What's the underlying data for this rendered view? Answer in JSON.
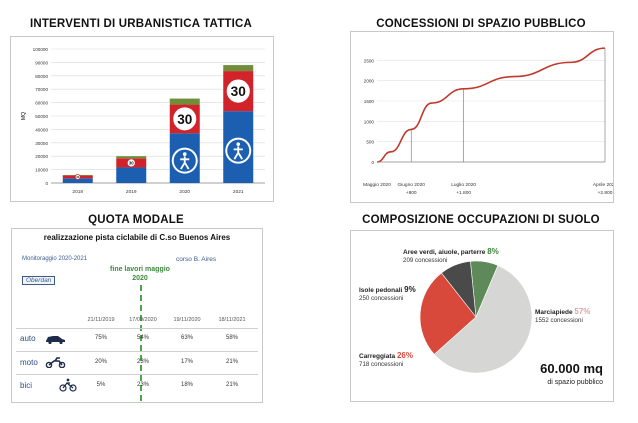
{
  "panels": {
    "tattica": {
      "title": "INTERVENTI DI URBANISTICA TATTICA",
      "chart_data": {
        "type": "bar",
        "categories": [
          "2018",
          "2019",
          "2020",
          "2021"
        ],
        "values": [
          6000,
          20000,
          63000,
          88000
        ],
        "xlabel": "ANNI",
        "ylabel": "MQ",
        "ylim": [
          0,
          100000
        ],
        "yticks": [
          "0",
          "10000",
          "20000",
          "30000",
          "40000",
          "50000",
          "60000",
          "70000",
          "80000",
          "90000",
          "100000"
        ],
        "sign_labels": [
          "30",
          "30",
          "30",
          "30"
        ],
        "colors": {
          "blue": "#1c5fb0",
          "red": "#d2232a",
          "olive": "#6f8d3a",
          "grid": "#d9d9d9"
        }
      }
    },
    "concessioni": {
      "title": "CONCESSIONI DI SPAZIO PUBBLICO",
      "chart_data": {
        "type": "line",
        "x": [
          "Maggio 2020",
          "Giugno 2020",
          "Luglio 2020",
          "Aprile 2021"
        ],
        "x_sub": [
          "",
          "+800",
          "+1.800",
          "+2.800"
        ],
        "y": [
          0,
          800,
          1800,
          2800
        ],
        "ylim": [
          0,
          3000
        ],
        "yticks": [
          "0",
          "500",
          "1000",
          "1500",
          "2000",
          "2500"
        ],
        "color": "#c0392b"
      }
    },
    "quota": {
      "title": "QUOTA MODALE",
      "subtitle": "realizzazione pista ciclabile di C.so Buenos Aires",
      "monitoraggio": "Monitoraggio 2020-2021",
      "corso": "corso B. Aires",
      "oberdan": "Oberdan",
      "fine_lavori": "fine lavori maggio 2020",
      "chart_data": {
        "type": "table",
        "columns": [
          "21/11/2019",
          "17/09/2020",
          "19/11/2020",
          "18/11/2021"
        ],
        "rows": [
          {
            "label": "auto",
            "values": [
              "75%",
              "54%",
              "63%",
              "58%"
            ]
          },
          {
            "label": "moto",
            "values": [
              "20%",
              "23%",
              "17%",
              "21%"
            ]
          },
          {
            "label": "bici",
            "values": [
              "5%",
              "23%",
              "18%",
              "21%"
            ]
          }
        ]
      }
    },
    "occupazioni": {
      "title": "COMPOSIZIONE OCCUPAZIONI DI SUOLO",
      "big_value": "60.000 mq",
      "big_caption": "di spazio pubblico",
      "chart_data": {
        "type": "pie",
        "slices": [
          {
            "name": "Marciapiede",
            "pct": 57,
            "pct_label": "57%",
            "count": "1552 concessioni",
            "color": "#d6d6d4"
          },
          {
            "name": "Carreggiata",
            "pct": 26,
            "pct_label": "26%",
            "count": "718 concessioni",
            "color": "#d9493b"
          },
          {
            "name": "Isole pedonali",
            "pct": 9,
            "pct_label": "9%",
            "count": "250 concessioni",
            "color": "#4a4a4a"
          },
          {
            "name": "Aree verdi, aiuole, parterre",
            "pct": 8,
            "pct_label": "8%",
            "count": "209 concessioni",
            "color": "#5e8a5a"
          }
        ]
      }
    }
  }
}
